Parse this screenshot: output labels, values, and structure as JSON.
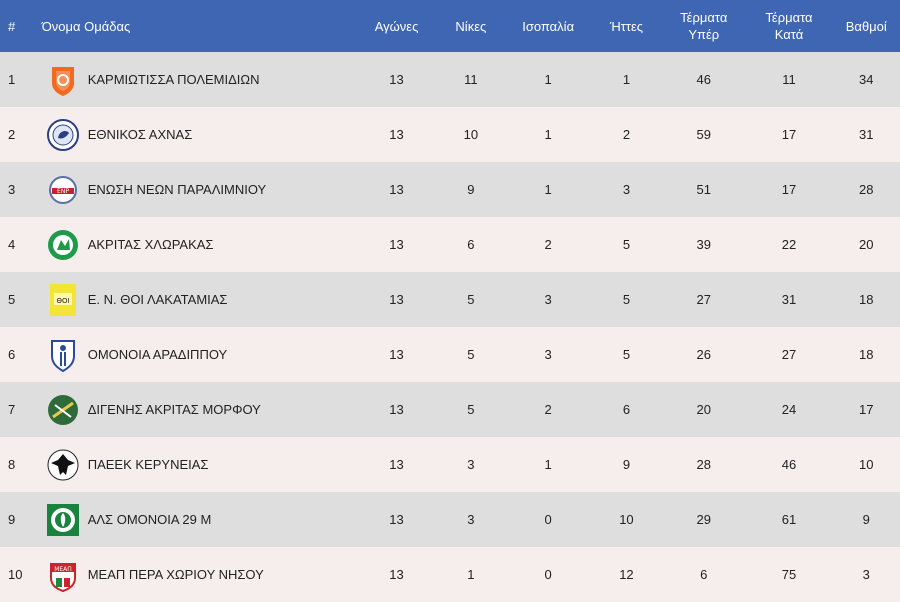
{
  "header": {
    "rank": "#",
    "team": "Όνομα Ομάδας",
    "played": "Αγώνες",
    "wins": "Νίκες",
    "draws": "Ισοπαλία",
    "losses": "Ήττες",
    "gf_line1": "Τέρματα",
    "gf_line2": "Υπέρ",
    "ga_line1": "Τέρματα",
    "ga_line2": "Κατά",
    "points": "Βαθμοί"
  },
  "rows": [
    {
      "rank": "1",
      "team": "ΚΑΡΜΙΩΤΙΣΣΑ ΠΟΛΕΜΙΔΙΩΝ",
      "played": "13",
      "wins": "11",
      "draws": "1",
      "losses": "1",
      "gf": "46",
      "ga": "11",
      "points": "34",
      "logo": "karmiotissa-crest-icon"
    },
    {
      "rank": "2",
      "team": "ΕΘΝΙΚΟΣ ΑΧΝΑΣ",
      "played": "13",
      "wins": "10",
      "draws": "1",
      "losses": "2",
      "gf": "59",
      "ga": "17",
      "points": "31",
      "logo": "ethnikos-crest-icon"
    },
    {
      "rank": "3",
      "team": "ΕΝΩΣΗ ΝΕΩΝ ΠΑΡΑΛΙΜΝΙΟΥ",
      "played": "13",
      "wins": "9",
      "draws": "1",
      "losses": "3",
      "gf": "51",
      "ga": "17",
      "points": "28",
      "logo": "enp-crest-icon"
    },
    {
      "rank": "4",
      "team": "ΑΚΡΙΤΑΣ ΧΛΩΡΑΚΑΣ",
      "played": "13",
      "wins": "6",
      "draws": "2",
      "losses": "5",
      "gf": "39",
      "ga": "22",
      "points": "20",
      "logo": "akritas-crest-icon"
    },
    {
      "rank": "5",
      "team": "Ε. Ν. ΘΟΙ ΛΑΚΑΤΑΜΙΑΣ",
      "played": "13",
      "wins": "5",
      "draws": "3",
      "losses": "5",
      "gf": "27",
      "ga": "31",
      "points": "18",
      "logo": "thoi-crest-icon"
    },
    {
      "rank": "6",
      "team": "ΟΜΟΝΟΙΑ ΑΡΑΔΙΠΠΟΥ",
      "played": "13",
      "wins": "5",
      "draws": "3",
      "losses": "5",
      "gf": "26",
      "ga": "27",
      "points": "18",
      "logo": "omonia-aradippou-crest-icon"
    },
    {
      "rank": "7",
      "team": "ΔΙΓΕΝΗΣ ΑΚΡΙΤΑΣ ΜΟΡΦΟΥ",
      "played": "13",
      "wins": "5",
      "draws": "2",
      "losses": "6",
      "gf": "20",
      "ga": "24",
      "points": "17",
      "logo": "digenis-crest-icon"
    },
    {
      "rank": "8",
      "team": "ΠΑΕΕΚ ΚΕΡΥΝΕΙΑΣ",
      "played": "13",
      "wins": "3",
      "draws": "1",
      "losses": "9",
      "gf": "28",
      "ga": "46",
      "points": "10",
      "logo": "paeek-crest-icon"
    },
    {
      "rank": "9",
      "team": "ΑΛΣ ΟΜΟΝΟΙΑ 29 Μ",
      "played": "13",
      "wins": "3",
      "draws": "0",
      "losses": "10",
      "gf": "29",
      "ga": "61",
      "points": "9",
      "logo": "omonia29m-crest-icon"
    },
    {
      "rank": "10",
      "team": "ΜΕΑΠ ΠΕΡΑ ΧΩΡΙΟΥ ΝΗΣΟΥ",
      "played": "13",
      "wins": "1",
      "draws": "0",
      "losses": "12",
      "gf": "6",
      "ga": "75",
      "points": "3",
      "logo": "meap-crest-icon",
      "logo_text": "ΜΕΑΠ"
    }
  ],
  "colors": {
    "header_bg": "#3f66b3",
    "row_odd": "#dedede",
    "row_even": "#f6eded"
  }
}
